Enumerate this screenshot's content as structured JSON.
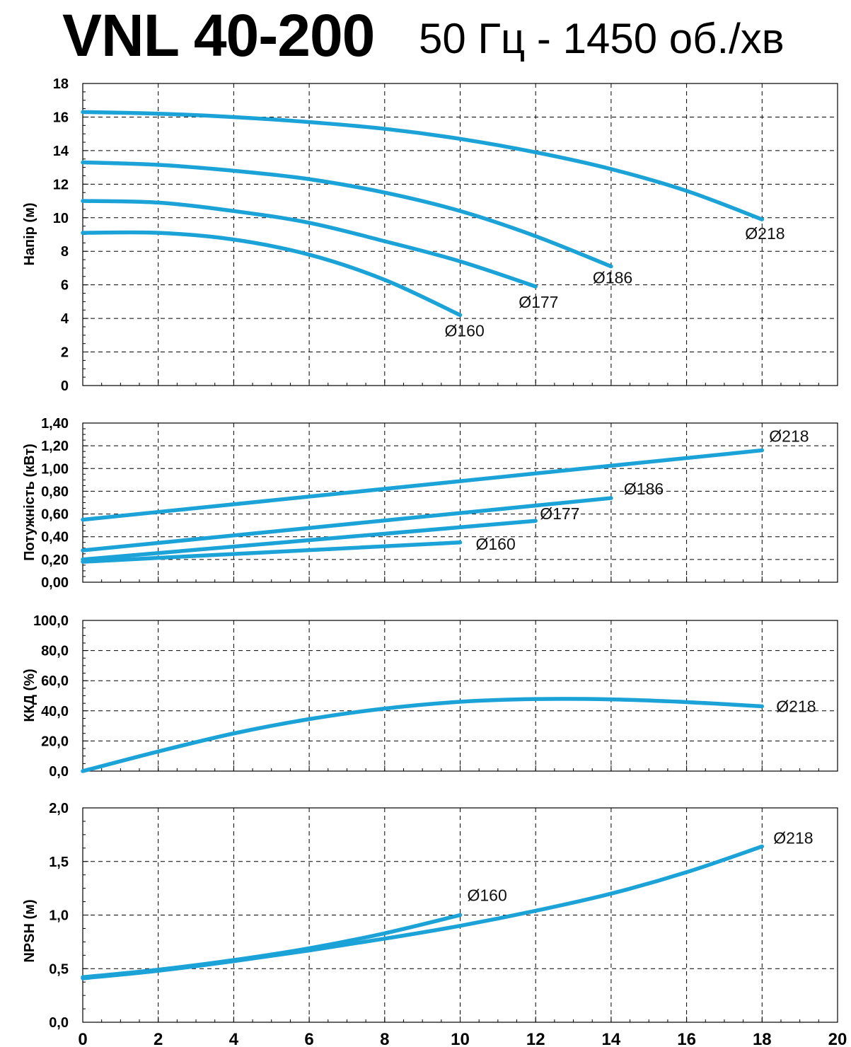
{
  "title": {
    "main": "VNL 40-200",
    "sub": "50 Гц - 1450 об./хв"
  },
  "colors": {
    "curve": "#1ba3d8",
    "grid": "#000000",
    "axis": "#000000"
  },
  "chart_data": [
    {
      "type": "line",
      "name": "head",
      "ylabel": "Напір (м)",
      "xlim": [
        0,
        20
      ],
      "ylim": [
        0,
        18
      ],
      "y_ticks": [
        "0",
        "2",
        "4",
        "6",
        "8",
        "10",
        "12",
        "14",
        "16",
        "18"
      ],
      "x_ticks": [],
      "grid": true,
      "series": [
        {
          "name": "Ø218",
          "points": [
            [
              0,
              16.3
            ],
            [
              2,
              16.2
            ],
            [
              4,
              16.0
            ],
            [
              6,
              15.7
            ],
            [
              8,
              15.3
            ],
            [
              10,
              14.7
            ],
            [
              12,
              13.9
            ],
            [
              14,
              12.9
            ],
            [
              16,
              11.6
            ],
            [
              18,
              9.9
            ]
          ]
        },
        {
          "name": "Ø186",
          "points": [
            [
              0,
              13.3
            ],
            [
              2,
              13.15
            ],
            [
              4,
              12.8
            ],
            [
              6,
              12.3
            ],
            [
              8,
              11.5
            ],
            [
              10,
              10.4
            ],
            [
              12,
              8.9
            ],
            [
              14,
              7.1
            ]
          ]
        },
        {
          "name": "Ø177",
          "points": [
            [
              0,
              11.0
            ],
            [
              2,
              10.9
            ],
            [
              4,
              10.4
            ],
            [
              6,
              9.7
            ],
            [
              8,
              8.6
            ],
            [
              10,
              7.4
            ],
            [
              12,
              5.9
            ]
          ]
        },
        {
          "name": "Ø160",
          "points": [
            [
              0,
              9.1
            ],
            [
              2,
              9.1
            ],
            [
              4,
              8.7
            ],
            [
              6,
              7.8
            ],
            [
              8,
              6.3
            ],
            [
              10,
              4.2
            ]
          ]
        }
      ]
    },
    {
      "type": "line",
      "name": "power",
      "ylabel": "Потужність (кВт)",
      "xlim": [
        0,
        20
      ],
      "ylim": [
        0,
        1.4
      ],
      "y_ticks": [
        "0,00",
        "0,20",
        "0,40",
        "0,60",
        "0,80",
        "1,00",
        "1,20",
        "1,40"
      ],
      "x_ticks": [],
      "grid": true,
      "series": [
        {
          "name": "Ø218",
          "points": [
            [
              0,
              0.55
            ],
            [
              18,
              1.16
            ]
          ]
        },
        {
          "name": "Ø186",
          "points": [
            [
              0,
              0.28
            ],
            [
              14,
              0.74
            ]
          ]
        },
        {
          "name": "Ø177",
          "points": [
            [
              0,
              0.2
            ],
            [
              12,
              0.54
            ]
          ]
        },
        {
          "name": "Ø160",
          "points": [
            [
              0,
              0.18
            ],
            [
              10,
              0.35
            ]
          ]
        }
      ]
    },
    {
      "type": "line",
      "name": "efficiency",
      "ylabel": "ККД (%)",
      "xlim": [
        0,
        20
      ],
      "ylim": [
        0,
        100
      ],
      "y_ticks": [
        "0,0",
        "20,0",
        "40,0",
        "60,0",
        "80,0",
        "100,0"
      ],
      "x_ticks": [],
      "grid": true,
      "series": [
        {
          "name": "Ø218",
          "points": [
            [
              0,
              0
            ],
            [
              2,
              13
            ],
            [
              4,
              25
            ],
            [
              6,
              34.5
            ],
            [
              8,
              41.5
            ],
            [
              10,
              46
            ],
            [
              12,
              47.8
            ],
            [
              14,
              47.6
            ],
            [
              16,
              45.8
            ],
            [
              18,
              43
            ]
          ]
        }
      ]
    },
    {
      "type": "line",
      "name": "npsh",
      "ylabel": "NPSH (м)",
      "xlim": [
        0,
        20
      ],
      "ylim": [
        0,
        2.0
      ],
      "y_ticks": [
        "0,0",
        "0,5",
        "1,0",
        "1,5",
        "2,0"
      ],
      "x_ticks": [
        "0",
        "2",
        "4",
        "6",
        "8",
        "10",
        "12",
        "14",
        "16",
        "18",
        "20"
      ],
      "grid": true,
      "series": [
        {
          "name": "Ø218",
          "points": [
            [
              0,
              0.41
            ],
            [
              2,
              0.48
            ],
            [
              4,
              0.57
            ],
            [
              6,
              0.67
            ],
            [
              8,
              0.78
            ],
            [
              10,
              0.9
            ],
            [
              12,
              1.04
            ],
            [
              14,
              1.2
            ],
            [
              16,
              1.4
            ],
            [
              18,
              1.64
            ]
          ]
        },
        {
          "name": "Ø160",
          "points": [
            [
              0,
              0.42
            ],
            [
              2,
              0.49
            ],
            [
              4,
              0.58
            ],
            [
              6,
              0.69
            ],
            [
              8,
              0.83
            ],
            [
              10,
              1.0
            ]
          ]
        }
      ]
    }
  ]
}
